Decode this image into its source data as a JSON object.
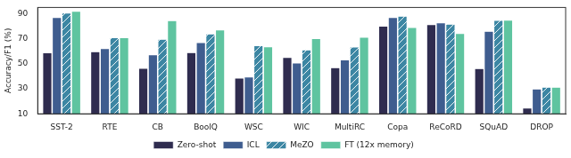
{
  "chart_data": {
    "type": "bar",
    "y_label": "Accuracy/F1 (%)",
    "categories": [
      "SST-2",
      "RTE",
      "CB",
      "BoolQ",
      "WSC",
      "WIC",
      "MultiRC",
      "Copa",
      "ReCoRD",
      "SQuAD",
      "DROP"
    ],
    "series": [
      {
        "name": "Zero-shot",
        "color": "#2f2c4f",
        "values": [
          58.8,
          59.6,
          46.4,
          59.0,
          38.5,
          55.0,
          46.9,
          80.0,
          81.2,
          46.2,
          14.6
        ]
      },
      {
        "name": "ICL",
        "color": "#3f5d8f",
        "values": [
          87.0,
          62.1,
          57.1,
          66.9,
          39.4,
          50.5,
          53.1,
          87.0,
          82.7,
          75.9,
          29.8
        ]
      },
      {
        "name": "MeZO",
        "color": "#3c86a3",
        "values": [
          90.5,
          70.8,
          69.6,
          73.8,
          64.4,
          61.1,
          63.3,
          88.0,
          81.7,
          84.7,
          31.3
        ]
      },
      {
        "name": "FT (12x memory)",
        "color": "#5fc4a0",
        "values": [
          91.9,
          70.8,
          84.4,
          77.1,
          63.5,
          70.1,
          71.1,
          79.0,
          74.1,
          84.9,
          31.3
        ]
      }
    ],
    "ylim": [
      10,
      95
    ],
    "yticks": [
      10,
      30,
      50,
      70,
      90
    ],
    "grid": false,
    "legend": "bottom"
  }
}
